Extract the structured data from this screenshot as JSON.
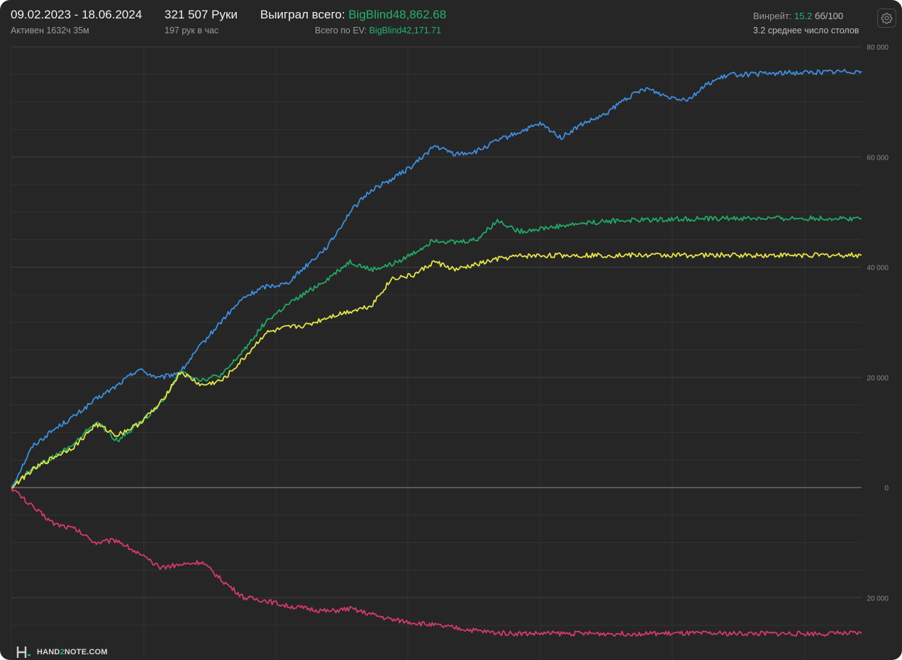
{
  "header": {
    "date_range": "09.02.2023 - 18.06.2024",
    "active_time": "Активен 1632ч 35м",
    "hands_total": "321 507 Руки",
    "hands_per_hour": "197 рук в час",
    "won_label": "Выиграл всего: ",
    "won_value": "BigBlind48,862.68",
    "ev_label": "Всего по EV: ",
    "ev_value": "BigBlind42,171.71",
    "winrate_label": "Винрейт: ",
    "winrate_value": "15.2",
    "winrate_unit": " бб/100",
    "avg_tables": "3.2 среднее число столов",
    "settings_icon": "gear-icon"
  },
  "branding": {
    "logo_icon": "hand2note-logo-icon",
    "logo_prefix": "HAND",
    "logo_accent": "2",
    "logo_suffix": "NOTE.COM"
  },
  "chart_data": {
    "type": "line",
    "x_range": [
      0,
      321507
    ],
    "ylim": [
      -26500,
      80000
    ],
    "y_ticks": [
      -20000,
      0,
      20000,
      40000,
      60000,
      80000
    ],
    "y_tick_labels": [
      "20 000",
      "0",
      "20 000",
      "40 000",
      "60 000",
      "80 000"
    ],
    "grid": true,
    "colors": {
      "background": "#262626",
      "grid": "#333333",
      "zero_line": "#8c8c8c",
      "accent": "#23b36b"
    },
    "series": [
      {
        "color": "#3d8fe0",
        "x": [
          0,
          8000,
          16000,
          24000,
          32000,
          40000,
          48000,
          56000,
          64000,
          72000,
          80000,
          88000,
          96000,
          104000,
          112000,
          120000,
          128000,
          136000,
          144000,
          152000,
          160000,
          168000,
          176000,
          184000,
          192000,
          200000,
          208000,
          216000,
          224000,
          232000,
          240000,
          248000,
          256000,
          264000,
          272000,
          280000,
          288000,
          296000,
          304000,
          312000,
          318000,
          321507
        ],
        "y": [
          0,
          7500,
          10500,
          13000,
          16000,
          18500,
          21500,
          19800,
          21000,
          26000,
          30500,
          34500,
          36500,
          37000,
          40500,
          44000,
          50000,
          54000,
          56000,
          58500,
          62000,
          60500,
          61000,
          63000,
          64500,
          66000,
          63500,
          66000,
          67500,
          70500,
          72500,
          71000,
          70500,
          73500,
          75000,
          75000,
          75200,
          75300,
          75400,
          75500,
          75600,
          75600
        ]
      },
      {
        "color": "#22a866",
        "x": [
          0,
          8000,
          16000,
          24000,
          32000,
          40000,
          48000,
          56000,
          64000,
          72000,
          80000,
          88000,
          96000,
          104000,
          112000,
          120000,
          128000,
          136000,
          144000,
          152000,
          160000,
          168000,
          176000,
          184000,
          192000,
          200000,
          208000,
          216000,
          224000,
          232000,
          240000,
          248000,
          256000,
          264000,
          272000,
          280000,
          288000,
          296000,
          304000,
          312000,
          318000,
          321507
        ],
        "y": [
          0,
          3500,
          5500,
          8000,
          12000,
          8500,
          11500,
          15000,
          21000,
          19500,
          20500,
          25000,
          30000,
          33000,
          35500,
          38000,
          41000,
          39500,
          40500,
          42500,
          45000,
          44500,
          45000,
          48500,
          46500,
          47000,
          47500,
          48000,
          48300,
          48500,
          48600,
          48700,
          48800,
          48800,
          48850,
          48860,
          48862,
          48862,
          48862,
          48862,
          48862,
          48862
        ]
      },
      {
        "color": "#e6e34a",
        "x": [
          0,
          8000,
          16000,
          24000,
          32000,
          40000,
          48000,
          56000,
          64000,
          72000,
          80000,
          88000,
          96000,
          104000,
          112000,
          120000,
          128000,
          136000,
          144000,
          152000,
          160000,
          168000,
          176000,
          184000,
          192000,
          200000,
          208000,
          216000,
          224000,
          232000,
          240000,
          248000,
          256000,
          264000,
          272000,
          280000,
          288000,
          296000,
          304000,
          312000,
          318000,
          321507
        ],
        "y": [
          0,
          3200,
          5500,
          7500,
          11500,
          9500,
          11500,
          15000,
          21000,
          18500,
          19500,
          23500,
          28000,
          29000,
          29500,
          31000,
          32000,
          33000,
          38000,
          38500,
          41000,
          39500,
          40500,
          41500,
          42000,
          42100,
          42150,
          42170,
          42171,
          42171,
          42171,
          42171,
          42171,
          42171,
          42171,
          42171,
          42171,
          42171,
          42171,
          42171,
          42171,
          42171
        ]
      },
      {
        "color": "#d63a6a",
        "x": [
          0,
          8000,
          16000,
          24000,
          32000,
          40000,
          48000,
          56000,
          64000,
          72000,
          80000,
          88000,
          96000,
          104000,
          112000,
          120000,
          128000,
          136000,
          144000,
          152000,
          160000,
          168000,
          176000,
          184000,
          192000,
          200000,
          208000,
          216000,
          224000,
          232000,
          240000,
          248000,
          256000,
          264000,
          272000,
          280000,
          288000,
          296000,
          304000,
          312000,
          318000,
          321507
        ],
        "y": [
          0,
          -3500,
          -6500,
          -7500,
          -10000,
          -9500,
          -12000,
          -14500,
          -14000,
          -13500,
          -17000,
          -20000,
          -20500,
          -21500,
          -22000,
          -22500,
          -22000,
          -23000,
          -24000,
          -24500,
          -25000,
          -25500,
          -26000,
          -26400,
          -26500,
          -26500,
          -26500,
          -26500,
          -26500,
          -26500,
          -26500,
          -26500,
          -26500,
          -26500,
          -26500,
          -26500,
          -26500,
          -26500,
          -26500,
          -26500,
          -26500,
          -26500
        ]
      }
    ]
  }
}
